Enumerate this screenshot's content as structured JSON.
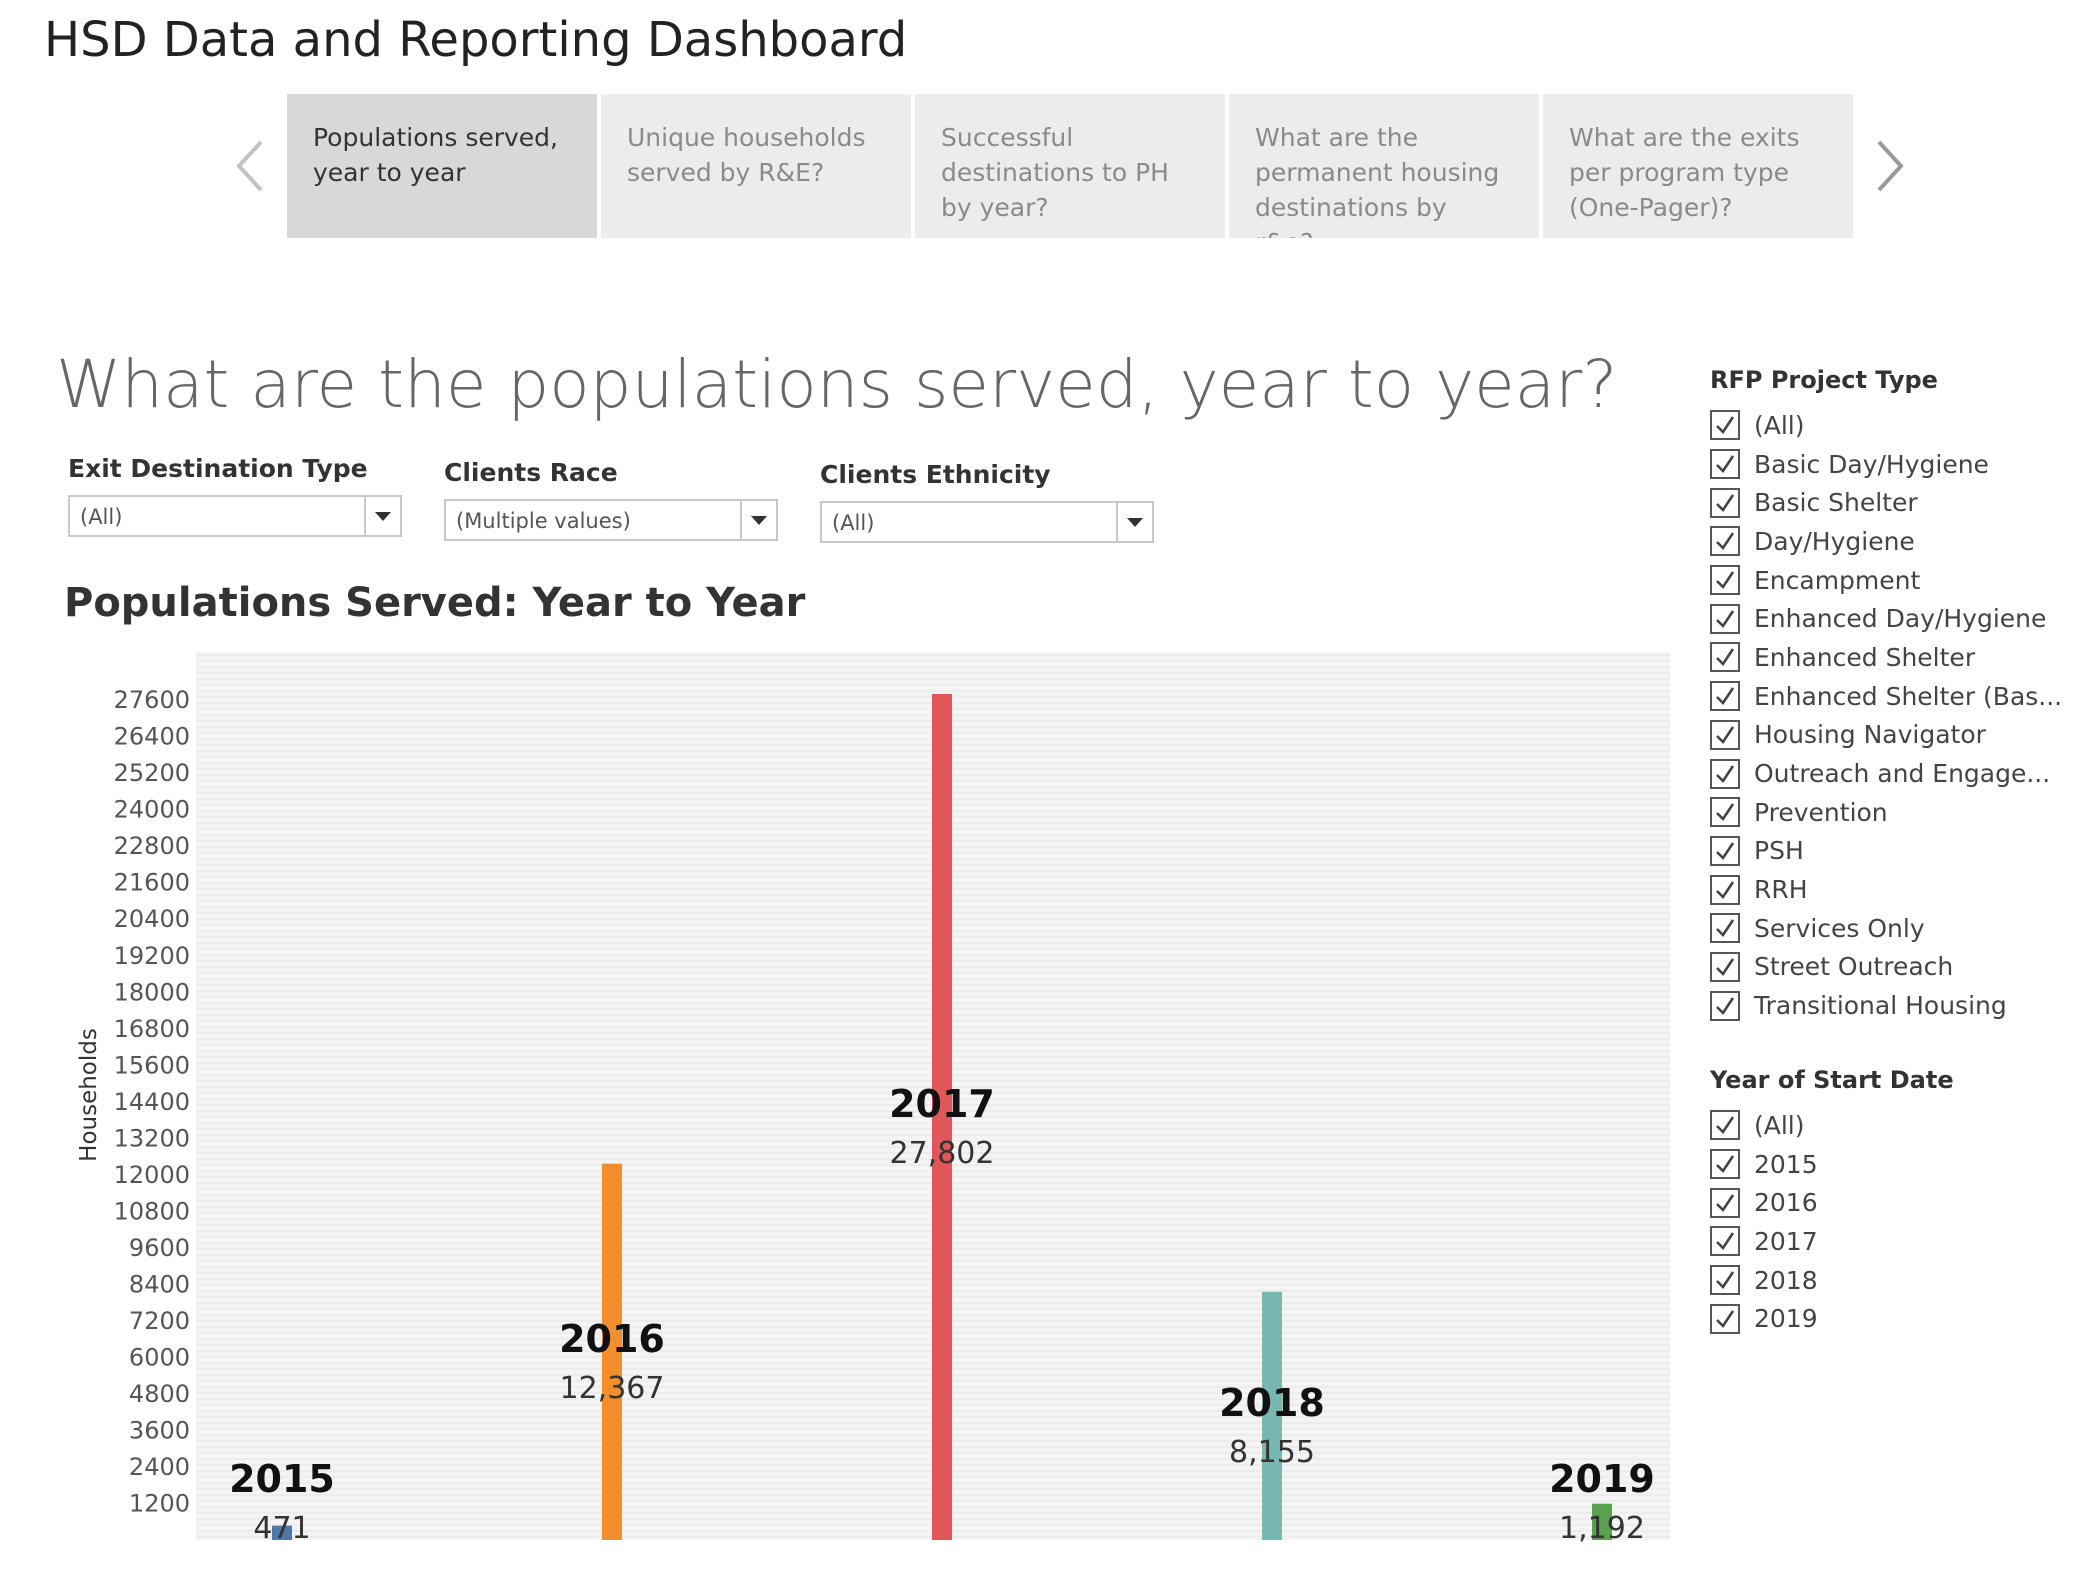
{
  "header": {
    "title": "HSD Data and Reporting Dashboard"
  },
  "tabs": [
    {
      "label": "Populations served, year to year",
      "active": true
    },
    {
      "label": "Unique households served by R&E?",
      "active": false
    },
    {
      "label": "Successful destinations to PH by year?",
      "active": false
    },
    {
      "label": "What are the permanent housing destinations by r&e?",
      "active": false
    },
    {
      "label": "What are the exits per program type (One-Pager)?",
      "active": false
    }
  ],
  "icons": {
    "prev": "chevron-left-icon",
    "next": "chevron-right-icon",
    "dropdown": "caret-down-icon",
    "check": "checkmark-icon"
  },
  "main": {
    "question": "What are the populations served, year to year?"
  },
  "filters": [
    {
      "label": "Exit Destination Type",
      "value": "(All)"
    },
    {
      "label": "Clients Race",
      "value": "(Multiple values)"
    },
    {
      "label": "Clients Ethnicity",
      "value": "(All)"
    }
  ],
  "chart_data": {
    "type": "bar",
    "title": "Populations Served: Year to Year",
    "ylabel": "Households",
    "xlabel": "",
    "categories": [
      "2015",
      "2016",
      "2017",
      "2018",
      "2019"
    ],
    "values": [
      471,
      12367,
      27802,
      8155,
      1192
    ],
    "value_labels": [
      "471",
      "12,367",
      "27,802",
      "8,155",
      "1,192"
    ],
    "colors": [
      "#4e79a7",
      "#f28e2b",
      "#e15759",
      "#76b7b2",
      "#59a14f"
    ],
    "yticks": [
      1200,
      2400,
      3600,
      4800,
      6000,
      7200,
      8400,
      9600,
      10800,
      12000,
      13200,
      14400,
      15600,
      16800,
      18000,
      19200,
      20400,
      21600,
      22800,
      24000,
      25200,
      26400,
      27600
    ],
    "ylim": [
      0,
      27802
    ],
    "grid": true
  },
  "sidebar": {
    "project_type": {
      "title": "RFP Project Type",
      "items": [
        "(All)",
        "Basic Day/Hygiene",
        "Basic Shelter",
        "Day/Hygiene",
        "Encampment",
        "Enhanced Day/Hygiene",
        "Enhanced Shelter",
        "Enhanced Shelter (Bas...",
        "Housing Navigator",
        "Outreach and Engage...",
        "Prevention",
        "PSH",
        "RRH",
        "Services Only",
        "Street Outreach",
        "Transitional Housing"
      ]
    },
    "start_year": {
      "title": "Year of Start Date",
      "items": [
        "(All)",
        "2015",
        "2016",
        "2017",
        "2018",
        "2019"
      ]
    }
  }
}
